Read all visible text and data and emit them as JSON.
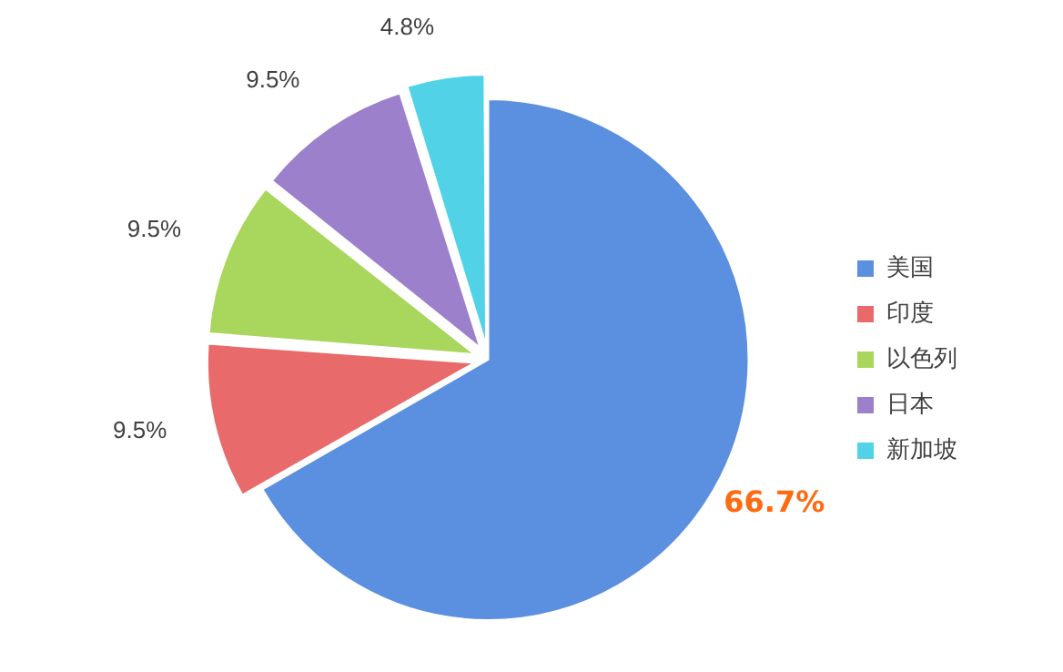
{
  "chart_data": {
    "type": "pie",
    "categories": [
      "美国",
      "印度",
      "以色列",
      "日本",
      "新加坡"
    ],
    "values": [
      66.7,
      9.5,
      9.5,
      9.5,
      4.8
    ],
    "colors": [
      "#5b8fe0",
      "#e86a6a",
      "#a9d65c",
      "#9c80cc",
      "#52d2e6"
    ],
    "value_labels": [
      "66.7%",
      "9.5%",
      "9.5%",
      "9.5%",
      "4.8%"
    ],
    "legend": "right"
  }
}
